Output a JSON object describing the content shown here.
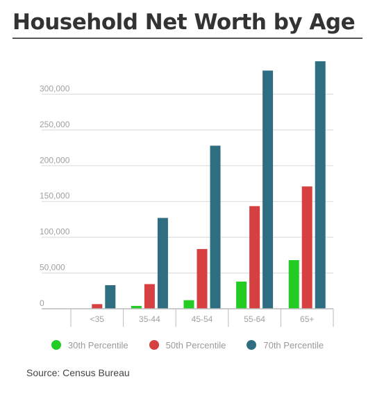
{
  "title": "Household Net Worth by Age",
  "source": "Source: Census Bureau",
  "colors": {
    "p30": "#22cc22",
    "p50": "#d64040",
    "p70": "#2e6e80",
    "grid": "#d8d8d8",
    "axis": "#bbbbbb",
    "tick": "#a0a0a0"
  },
  "chart_data": {
    "type": "bar",
    "title": "Household Net Worth by Age",
    "categories": [
      "<35",
      "35-44",
      "45-54",
      "55-64",
      "65+"
    ],
    "series": [
      {
        "name": "30th Percentile",
        "color": "#22cc22",
        "values": [
          0,
          4000,
          12000,
          38000,
          68000
        ]
      },
      {
        "name": "50th Percentile",
        "color": "#d64040",
        "values": [
          6500,
          34500,
          83500,
          143500,
          171000
        ]
      },
      {
        "name": "70th Percentile",
        "color": "#2e6e80",
        "values": [
          33000,
          127000,
          228000,
          333000,
          346000
        ]
      }
    ],
    "ylim": [
      0,
      350000
    ],
    "yticks": [
      0,
      50000,
      100000,
      150000,
      200000,
      250000,
      300000
    ],
    "ytick_labels": [
      "0",
      "50,000",
      "100,000",
      "150,000",
      "200,000",
      "250,000",
      "300,000"
    ],
    "grid": true,
    "legend": "bottom-center"
  }
}
